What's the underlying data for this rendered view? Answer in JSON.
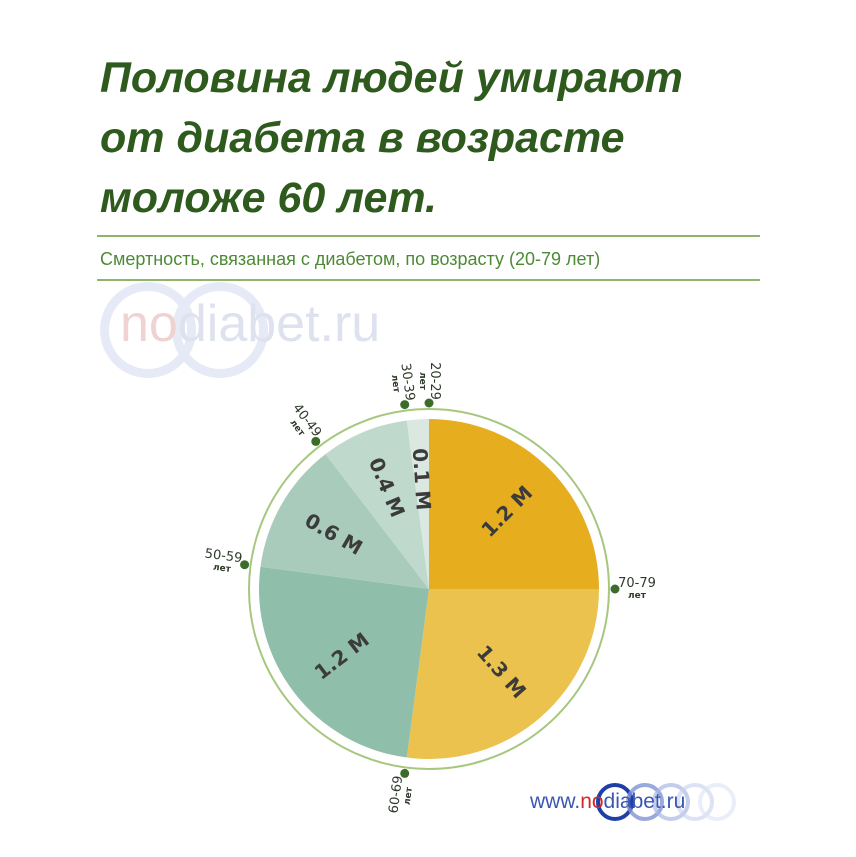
{
  "headline": {
    "line1": "Половина людей умирают",
    "line2": "от диабета в возрасте",
    "line3": "моложе 60 лет."
  },
  "watermark": {
    "no": "no",
    "rest": "diabet.ru"
  },
  "footer": {
    "prefix": "www.",
    "no": "no",
    "rest": "diabet.ru"
  },
  "colors": {
    "headline": "#2e5a1e",
    "subtitle": "#4d8a36",
    "rule": "#8fb56a",
    "outer_ring": "#a7c77e",
    "dot": "#3c6b2a",
    "age_label": "#2e3a2a",
    "value_label": "#3b3b3b"
  },
  "chart_data": {
    "type": "pie",
    "title": "Смертность, связанная с диабетом, по возрасту (20-79 лет)",
    "unit": "M",
    "slices": [
      {
        "age": "70-79",
        "unit_word": "лет",
        "value": 1.2,
        "label": "1.2 M",
        "color": "#e6ae1f"
      },
      {
        "age": "60-69",
        "unit_word": "лет",
        "value": 1.3,
        "label": "1.3 M",
        "color": "#ecc24f"
      },
      {
        "age": "50-59",
        "unit_word": "лет",
        "value": 1.2,
        "label": "1.2 M",
        "color": "#8fbfaa"
      },
      {
        "age": "40-49",
        "unit_word": "лет",
        "value": 0.6,
        "label": "0.6 M",
        "color": "#a8cbbc"
      },
      {
        "age": "30-39",
        "unit_word": "лет",
        "value": 0.4,
        "label": "0.4 M",
        "color": "#c0d9cd"
      },
      {
        "age": "20-29",
        "unit_word": "лет",
        "value": 0.1,
        "label": "0.1 M",
        "color": "#dbe8e1"
      }
    ]
  }
}
